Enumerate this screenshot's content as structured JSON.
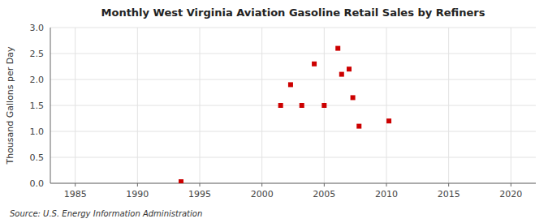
{
  "chart_data": {
    "type": "scatter",
    "title": "Monthly West Virginia Aviation Gasoline Retail Sales by Refiners",
    "ylabel": "Thousand Gallons per Day",
    "source": "Source: U.S. Energy Information Administration",
    "x": [
      1993.5,
      2001.5,
      2002.3,
      2003.2,
      2004.2,
      2005.0,
      2006.1,
      2006.4,
      2007.0,
      2007.3,
      2007.8,
      2010.2
    ],
    "values": [
      0.03,
      1.5,
      1.9,
      1.5,
      2.3,
      1.5,
      2.6,
      2.1,
      2.2,
      1.65,
      1.1,
      1.2
    ],
    "color": "#cc0000",
    "marker": "square",
    "xlim": [
      1983,
      2022
    ],
    "ylim": [
      0.0,
      3.0
    ],
    "xticks": [
      1985,
      1990,
      1995,
      2000,
      2005,
      2010,
      2015,
      2020
    ],
    "yticks": [
      {
        "value": 0.0,
        "label": "0.0"
      },
      0.5,
      {
        "value": 1.0,
        "label": "1.0"
      },
      1.5,
      {
        "value": 2.0,
        "label": "2.0"
      },
      2.5,
      {
        "value": 3.0,
        "label": "3.0"
      }
    ],
    "grid": true
  }
}
